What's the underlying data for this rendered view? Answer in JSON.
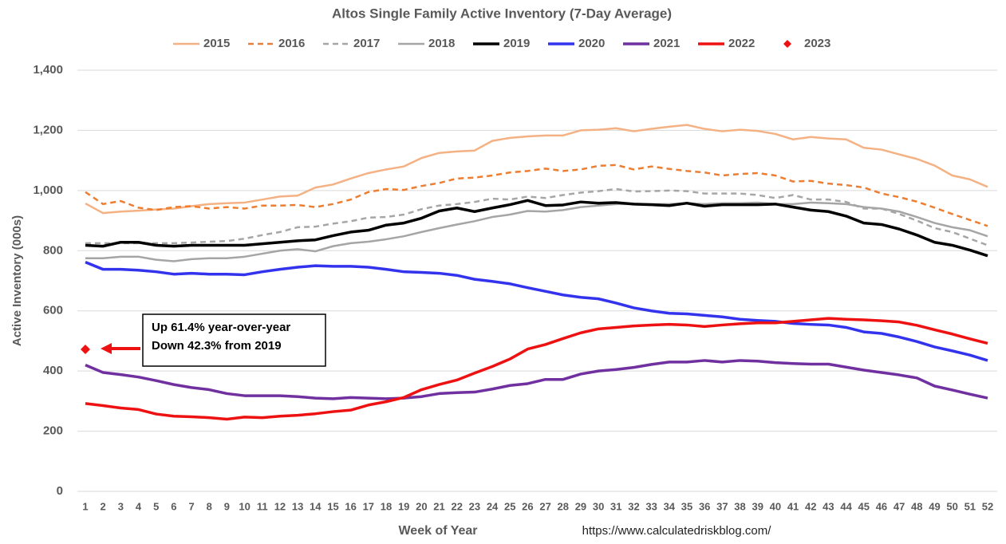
{
  "chart_data": {
    "type": "line",
    "title": "Altos Single Family Active Inventory (7-Day Average)",
    "x_label": "Week of Year",
    "y_label": "Active Inventory (000s)",
    "source": "https://www.calculatedriskblog.com/",
    "annotation": [
      "Up  61.4% year-over-year",
      "Down 42.3% from 2019"
    ],
    "x": [
      1,
      2,
      3,
      4,
      5,
      6,
      7,
      8,
      9,
      10,
      11,
      12,
      13,
      14,
      15,
      16,
      17,
      18,
      19,
      20,
      21,
      22,
      23,
      24,
      25,
      26,
      27,
      28,
      29,
      30,
      31,
      32,
      33,
      34,
      35,
      36,
      37,
      38,
      39,
      40,
      41,
      42,
      43,
      44,
      45,
      46,
      47,
      48,
      49,
      50,
      51,
      52
    ],
    "xlim": [
      1,
      52
    ],
    "ylim": [
      0,
      1400
    ],
    "yticks": [
      0,
      200,
      400,
      600,
      800,
      {
        "value": 1000,
        "label": "1,000"
      },
      {
        "value": 1200,
        "label": "1,200"
      },
      {
        "value": 1400,
        "label": "1,400"
      }
    ],
    "grid": true,
    "legend": "top",
    "series": [
      {
        "name": "2015",
        "color": "#f4b183",
        "style": "solid",
        "line_width": 2.5,
        "values": [
          957,
          925,
          930,
          933,
          937,
          940,
          948,
          955,
          958,
          960,
          970,
          980,
          983,
          1010,
          1020,
          1040,
          1058,
          1070,
          1080,
          1108,
          1125,
          1130,
          1133,
          1165,
          1175,
          1180,
          1183,
          1183,
          1200,
          1202,
          1207,
          1197,
          1205,
          1212,
          1218,
          1205,
          1197,
          1202,
          1198,
          1188,
          1170,
          1178,
          1173,
          1170,
          1142,
          1136,
          1120,
          1105,
          1083,
          1050,
          1037,
          1012
        ]
      },
      {
        "name": "2016",
        "color": "#ed7d31",
        "style": "dashed",
        "line_width": 2.5,
        "values": [
          995,
          955,
          965,
          943,
          935,
          945,
          948,
          940,
          945,
          940,
          950,
          950,
          952,
          945,
          955,
          970,
          995,
          1005,
          1002,
          1015,
          1025,
          1040,
          1043,
          1050,
          1060,
          1065,
          1073,
          1065,
          1070,
          1082,
          1085,
          1070,
          1080,
          1072,
          1065,
          1060,
          1050,
          1055,
          1058,
          1050,
          1030,
          1032,
          1023,
          1018,
          1010,
          990,
          978,
          963,
          943,
          922,
          902,
          882
        ]
      },
      {
        "name": "2017",
        "color": "#a6a6a6",
        "style": "dashed",
        "line_width": 2.5,
        "values": [
          825,
          825,
          825,
          825,
          825,
          825,
          827,
          830,
          832,
          840,
          852,
          862,
          878,
          880,
          890,
          898,
          910,
          912,
          920,
          938,
          950,
          955,
          962,
          973,
          970,
          980,
          975,
          985,
          993,
          998,
          1005,
          997,
          998,
          1000,
          998,
          990,
          990,
          990,
          985,
          975,
          985,
          970,
          970,
          962,
          940,
          940,
          922,
          900,
          875,
          862,
          840,
          818
        ]
      },
      {
        "name": "2018",
        "color": "#a5a5a5",
        "style": "solid",
        "line_width": 2.5,
        "values": [
          775,
          775,
          780,
          780,
          770,
          765,
          772,
          775,
          775,
          780,
          790,
          800,
          805,
          798,
          815,
          825,
          830,
          838,
          848,
          862,
          875,
          887,
          898,
          912,
          920,
          932,
          930,
          935,
          945,
          950,
          955,
          955,
          955,
          955,
          958,
          955,
          958,
          958,
          960,
          955,
          955,
          960,
          958,
          955,
          945,
          940,
          930,
          912,
          892,
          878,
          868,
          848
        ]
      },
      {
        "name": "2019",
        "color": "#000000",
        "style": "solid",
        "line_width": 3.5,
        "values": [
          818,
          815,
          828,
          828,
          818,
          815,
          818,
          818,
          818,
          818,
          823,
          828,
          833,
          836,
          850,
          862,
          868,
          885,
          892,
          908,
          932,
          942,
          930,
          942,
          953,
          967,
          950,
          952,
          962,
          958,
          960,
          955,
          953,
          950,
          958,
          948,
          953,
          953,
          953,
          955,
          945,
          935,
          930,
          915,
          892,
          887,
          872,
          852,
          828,
          818,
          802,
          783
        ]
      },
      {
        "name": "2020",
        "color": "#3333ee",
        "style": "solid",
        "line_width": 3.5,
        "values": [
          762,
          738,
          738,
          735,
          730,
          722,
          725,
          722,
          722,
          720,
          730,
          738,
          745,
          750,
          748,
          748,
          745,
          738,
          730,
          728,
          725,
          718,
          705,
          698,
          690,
          677,
          665,
          653,
          645,
          640,
          626,
          610,
          600,
          592,
          590,
          585,
          580,
          572,
          568,
          565,
          558,
          555,
          553,
          545,
          530,
          525,
          513,
          498,
          480,
          467,
          453,
          435
        ]
      },
      {
        "name": "2021",
        "color": "#7030a0",
        "style": "solid",
        "line_width": 3.5,
        "values": [
          420,
          395,
          388,
          380,
          368,
          355,
          345,
          338,
          325,
          318,
          318,
          318,
          315,
          310,
          308,
          312,
          310,
          308,
          310,
          315,
          325,
          328,
          330,
          340,
          352,
          358,
          372,
          372,
          390,
          400,
          405,
          412,
          422,
          430,
          430,
          435,
          430,
          435,
          433,
          428,
          425,
          423,
          423,
          413,
          403,
          395,
          387,
          377,
          350,
          337,
          323,
          310
        ]
      },
      {
        "name": "2022",
        "color": "#ee1111",
        "style": "solid",
        "line_width": 3.5,
        "values": [
          292,
          285,
          277,
          272,
          257,
          250,
          248,
          245,
          240,
          247,
          245,
          250,
          253,
          258,
          265,
          270,
          287,
          298,
          312,
          338,
          355,
          370,
          393,
          415,
          440,
          473,
          488,
          508,
          527,
          540,
          545,
          550,
          553,
          555,
          553,
          548,
          553,
          557,
          560,
          560,
          565,
          570,
          575,
          572,
          570,
          567,
          563,
          552,
          537,
          523,
          507,
          492
        ]
      },
      {
        "name": "2023",
        "color": "#ee1111",
        "style": "marker",
        "marker": "diamond",
        "values": [
          472,
          null,
          null,
          null,
          null,
          null,
          null,
          null,
          null,
          null,
          null,
          null,
          null,
          null,
          null,
          null,
          null,
          null,
          null,
          null,
          null,
          null,
          null,
          null,
          null,
          null,
          null,
          null,
          null,
          null,
          null,
          null,
          null,
          null,
          null,
          null,
          null,
          null,
          null,
          null,
          null,
          null,
          null,
          null,
          null,
          null,
          null,
          null,
          null,
          null,
          null,
          null
        ]
      }
    ]
  }
}
